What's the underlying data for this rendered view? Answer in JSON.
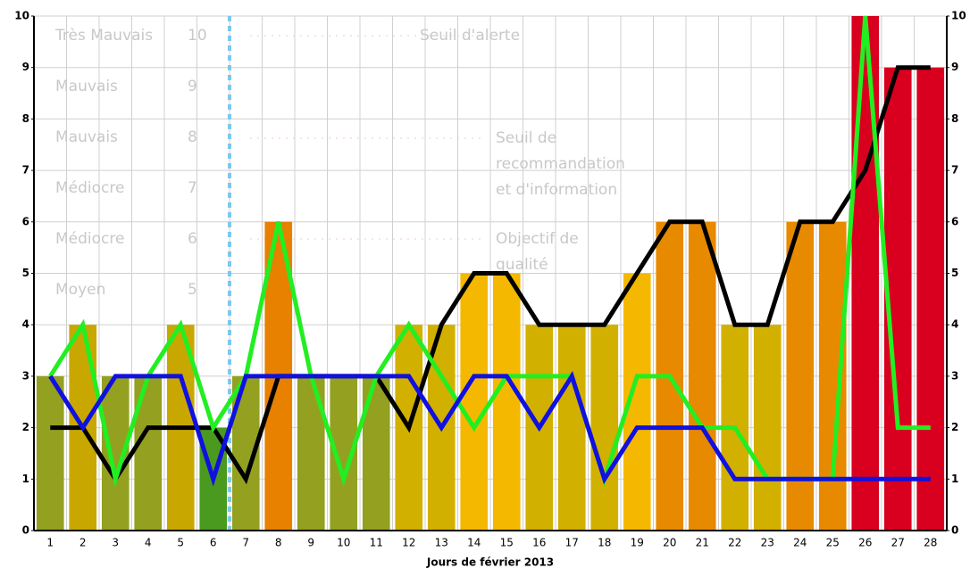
{
  "chart_data": {
    "type": "bar_line",
    "x_label": "Jours de février 2013",
    "categories": [
      1,
      2,
      3,
      4,
      5,
      6,
      7,
      8,
      9,
      10,
      11,
      12,
      13,
      14,
      15,
      16,
      17,
      18,
      19,
      20,
      21,
      22,
      23,
      24,
      25,
      26,
      27,
      28
    ],
    "bars": {
      "values": [
        3,
        4,
        3,
        3,
        4,
        2,
        3,
        6,
        3,
        3,
        3,
        4,
        4,
        5,
        5,
        4,
        4,
        4,
        5,
        6,
        6,
        4,
        4,
        6,
        6,
        10,
        9,
        9
      ],
      "colors": [
        "#94a020",
        "#c8a800",
        "#94a020",
        "#94a020",
        "#c8a800",
        "#4a9a20",
        "#94a020",
        "#e88000",
        "#94a020",
        "#94a020",
        "#94a020",
        "#d2b000",
        "#d2b000",
        "#f5b800",
        "#f5b800",
        "#d2b000",
        "#d2b000",
        "#d2b000",
        "#f5b800",
        "#e88a00",
        "#e88a00",
        "#d2b000",
        "#d2b000",
        "#e88a00",
        "#e88a00",
        "#d8001e",
        "#d8001e",
        "#d8001e"
      ]
    },
    "series": [
      {
        "color": "#000000",
        "values": [
          2,
          2,
          1,
          2,
          2,
          2,
          1,
          3,
          3,
          3,
          3,
          2,
          4,
          5,
          5,
          4,
          4,
          4,
          5,
          6,
          6,
          4,
          4,
          6,
          6,
          7,
          9,
          9
        ]
      },
      {
        "color": "#22ee22",
        "values": [
          3,
          4,
          1,
          3,
          4,
          2,
          3,
          6,
          3,
          1,
          3,
          4,
          3,
          2,
          3,
          3,
          3,
          1,
          3,
          3,
          2,
          2,
          1,
          1,
          1,
          10,
          2,
          2
        ]
      },
      {
        "color": "#1010e0",
        "values": [
          3,
          2,
          3,
          3,
          3,
          1,
          3,
          3,
          3,
          3,
          3,
          3,
          2,
          3,
          3,
          2,
          3,
          1,
          2,
          2,
          2,
          1,
          1,
          1,
          1,
          1,
          1,
          1
        ]
      }
    ],
    "ylim": [
      0,
      10
    ],
    "yticks": [
      0,
      1,
      2,
      3,
      4,
      5,
      6,
      7,
      8,
      9,
      10
    ],
    "grid": true,
    "watermark": {
      "levels": [
        [
          "Très Mauvais",
          "10"
        ],
        [
          "Mauvais",
          "9"
        ],
        [
          "Mauvais",
          "8"
        ],
        [
          "Médiocre",
          "7"
        ],
        [
          "Médiocre",
          "6"
        ],
        [
          "Moyen",
          "5"
        ]
      ],
      "thresholds": [
        [
          "Seuil d'alerte"
        ],
        [
          "Seuil de",
          "recommandation",
          "et d'information"
        ],
        [
          "Objectif de",
          "qualité"
        ]
      ]
    }
  }
}
